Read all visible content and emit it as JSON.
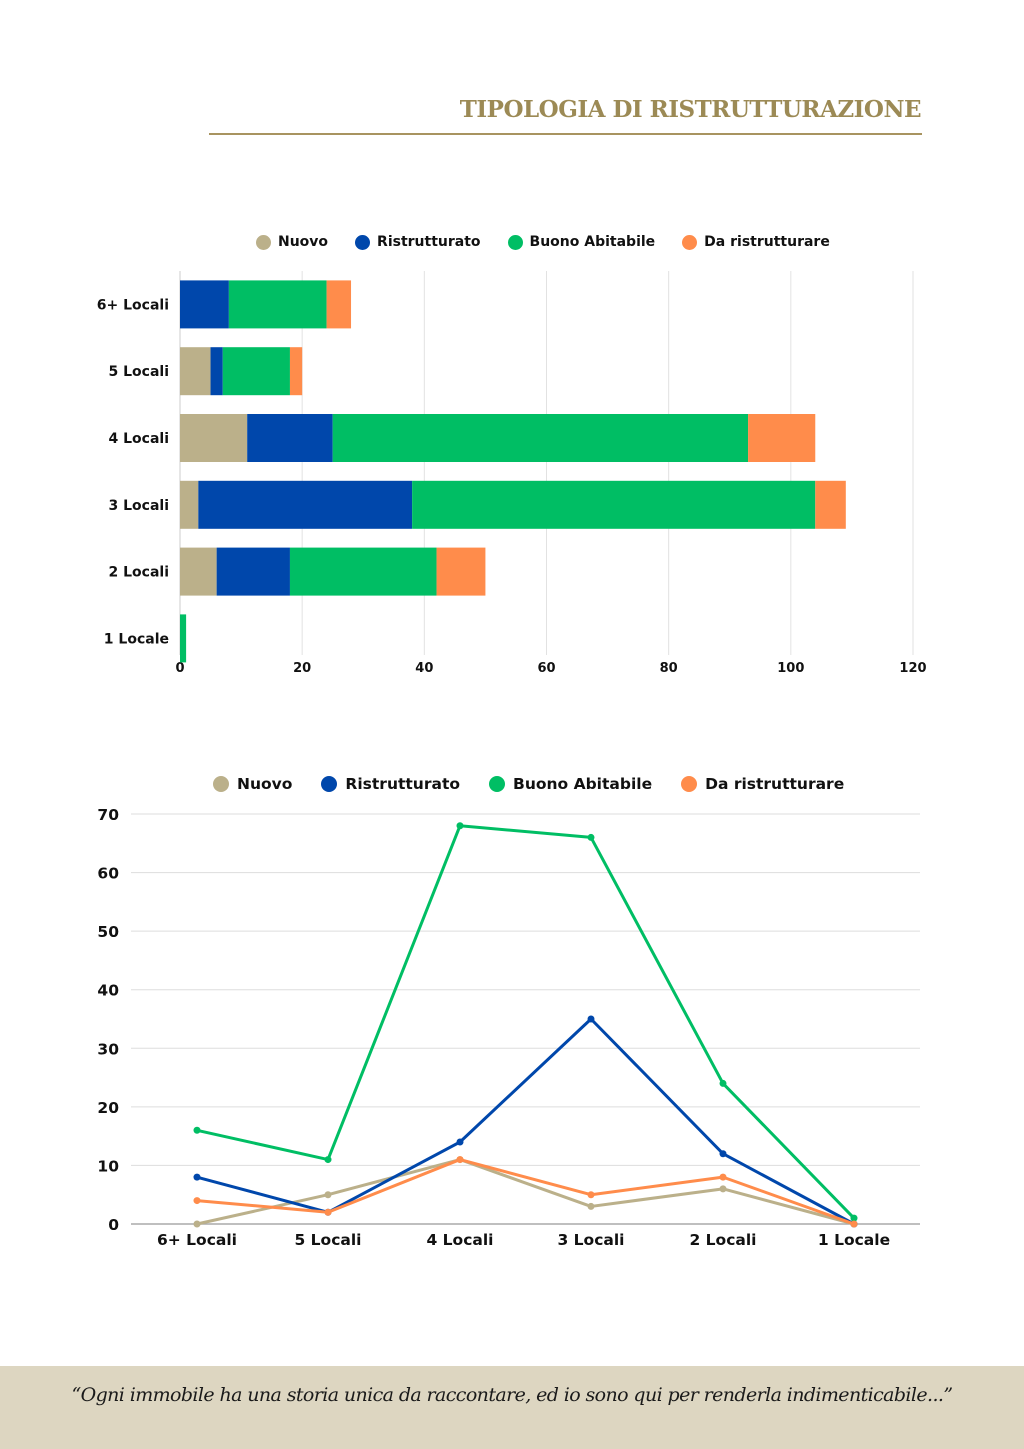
{
  "header": {
    "title": "TIPOLOGIA DI RISTRUTTURAZIONE"
  },
  "colors": {
    "title": "#9c8a55",
    "nuovo": "#bbb08a",
    "ristrutturato": "#0047ab",
    "buono_abitabile": "#00be64",
    "da_ristrutturare": "#ff8c4b",
    "footer_bg": "#ddd6c1",
    "grid": "#dddddd"
  },
  "legend": [
    {
      "label": "Nuovo",
      "color": "#bbb08a"
    },
    {
      "label": "Ristrutturato",
      "color": "#0047ab"
    },
    {
      "label": "Buono Abitabile",
      "color": "#00be64"
    },
    {
      "label": "Da ristrutturare",
      "color": "#ff8c4b"
    }
  ],
  "chart_data": [
    {
      "type": "bar",
      "orientation": "horizontal",
      "stacked": true,
      "title": "",
      "xlabel": "",
      "ylabel": "",
      "categories": [
        "6+ Locali",
        "5 Locali",
        "4 Locali",
        "3 Locali",
        "2 Locali",
        "1 Locale"
      ],
      "series": [
        {
          "name": "Nuovo",
          "color": "#bbb08a",
          "values": [
            0,
            5,
            11,
            3,
            6,
            0
          ]
        },
        {
          "name": "Ristrutturato",
          "color": "#0047ab",
          "values": [
            8,
            2,
            14,
            35,
            12,
            0
          ]
        },
        {
          "name": "Buono Abitabile",
          "color": "#00be64",
          "values": [
            16,
            11,
            68,
            66,
            24,
            1
          ]
        },
        {
          "name": "Da ristrutturare",
          "color": "#ff8c4b",
          "values": [
            4,
            2,
            11,
            5,
            8,
            0
          ]
        }
      ],
      "xlim": [
        0,
        120
      ],
      "xticks": [
        "0",
        "20",
        "40",
        "60",
        "80",
        "100",
        "120"
      ],
      "grid": true,
      "legend_position": "top"
    },
    {
      "type": "line",
      "title": "",
      "xlabel": "",
      "ylabel": "",
      "categories": [
        "6+ Locali",
        "5 Locali",
        "4 Locali",
        "3 Locali",
        "2 Locali",
        "1 Locale"
      ],
      "series": [
        {
          "name": "Nuovo",
          "color": "#bbb08a",
          "values": [
            0,
            5,
            11,
            3,
            6,
            0
          ]
        },
        {
          "name": "Ristrutturato",
          "color": "#0047ab",
          "values": [
            8,
            2,
            14,
            35,
            12,
            0
          ]
        },
        {
          "name": "Buono Abitabile",
          "color": "#00be64",
          "values": [
            16,
            11,
            68,
            66,
            24,
            1
          ]
        },
        {
          "name": "Da ristrutturare",
          "color": "#ff8c4b",
          "values": [
            4,
            2,
            11,
            5,
            8,
            0
          ]
        }
      ],
      "ylim": [
        0,
        70
      ],
      "yticks": [
        "0",
        "10",
        "20",
        "30",
        "40",
        "50",
        "60",
        "70"
      ],
      "grid": true,
      "legend_position": "top"
    }
  ],
  "footer": {
    "quote": "“Ogni immobile ha una storia unica da raccontare, ed io sono qui per renderla indimenticabile...”"
  }
}
